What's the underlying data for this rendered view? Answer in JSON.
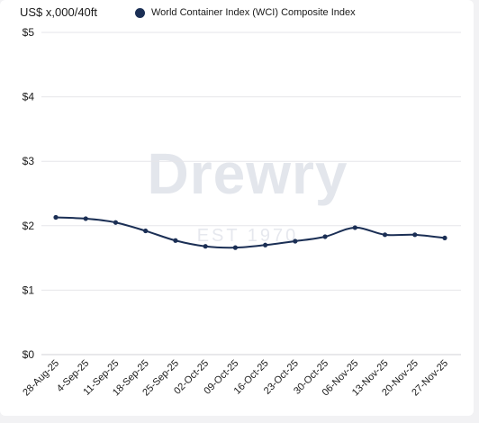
{
  "chart_data": {
    "type": "line",
    "title": "",
    "ylabel": "US$ x,000/40ft",
    "xlabel": "",
    "ylim": [
      0,
      5
    ],
    "yticks": [
      "$0",
      "$1",
      "$2",
      "$3",
      "$4",
      "$5"
    ],
    "grid": "horizontal",
    "legend_position": "top",
    "categories": [
      "28-Aug-25",
      "4-Sep-25",
      "11-Sep-25",
      "18-Sep-25",
      "25-Sep-25",
      "02-Oct-25",
      "09-Oct-25",
      "16-Oct-25",
      "23-Oct-25",
      "30-Oct-25",
      "06-Nov-25",
      "13-Nov-25",
      "20-Nov-25",
      "27-Nov-25"
    ],
    "series": [
      {
        "name": "World Container Index (WCI) Composite Index",
        "color": "#1b2f55",
        "values": [
          2.13,
          2.11,
          2.05,
          1.92,
          1.77,
          1.68,
          1.66,
          1.7,
          1.76,
          1.83,
          1.97,
          1.86,
          1.86,
          1.81
        ]
      }
    ]
  },
  "watermark": {
    "brand": "Drewry",
    "est": "EST 1970"
  }
}
